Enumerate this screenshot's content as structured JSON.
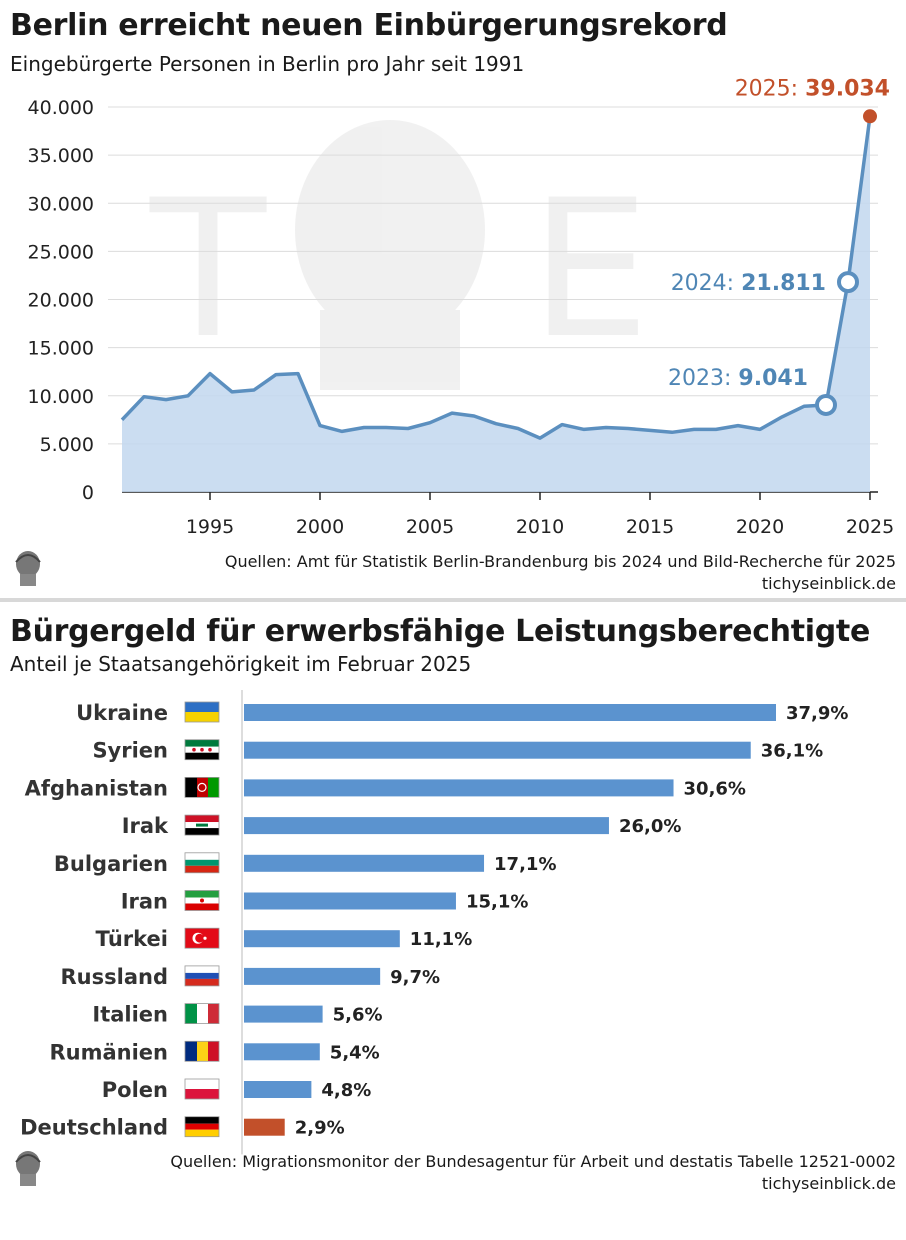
{
  "colors": {
    "line": "#5b8fbf",
    "area": "#c2d7ee",
    "bar": "#5b93cf",
    "highlight_orange": "#c2502a",
    "annotation_blue": "#4f86b5"
  },
  "line_chart": {
    "title": "Berlin erreicht neuen Einbürgerungsrekord",
    "subtitle": "Eingebürgerte Personen in Berlin pro Jahr seit 1991",
    "source": "Quellen: Amt für Statistik Berlin-Brandenburg bis 2024 und Bild-Recherche für 2025",
    "site": "tichyseinblick.de",
    "annotations": [
      {
        "label": "2023: ",
        "value": "9.041",
        "year": 2023,
        "y": 9041,
        "color_key": "annotation_blue"
      },
      {
        "label": "2024: ",
        "value": "21.811",
        "year": 2024,
        "y": 21811,
        "color_key": "annotation_blue"
      },
      {
        "label": "2025: ",
        "value": "39.034",
        "year": 2025,
        "y": 39034,
        "color_key": "highlight_orange"
      }
    ]
  },
  "bar_chart": {
    "title": "Bürgergeld für erwerbsfähige Leistungsberechtigte",
    "subtitle": "Anteil je Staatsangehörigkeit im Februar 2025",
    "source": "Quellen: Migrationsmonitor der Bundesagentur für Arbeit und destatis Tabelle 12521-0002",
    "site": "tichyseinblick.de"
  },
  "chart_data": [
    {
      "type": "area",
      "title": "Berlin erreicht neuen Einbürgerungsrekord",
      "subtitle": "Eingebürgerte Personen in Berlin pro Jahr seit 1991",
      "xlabel": "",
      "ylabel": "",
      "xlim": [
        1991,
        2025
      ],
      "ylim": [
        0,
        40000
      ],
      "x_ticks": [
        1995,
        2000,
        2005,
        2010,
        2015,
        2020,
        2025
      ],
      "x_tick_labels": [
        "1995",
        "2000",
        "2005",
        "2010",
        "2015",
        "2020",
        "2025"
      ],
      "y_ticks": [
        0,
        5000,
        10000,
        15000,
        20000,
        25000,
        30000,
        35000,
        40000
      ],
      "y_tick_labels": [
        "0",
        "5.000",
        "10.000",
        "15.000",
        "20.000",
        "25.000",
        "30.000",
        "35.000",
        "40.000"
      ],
      "grid": true,
      "x": [
        1991,
        1992,
        1993,
        1994,
        1995,
        1996,
        1997,
        1998,
        1999,
        2000,
        2001,
        2002,
        2003,
        2004,
        2005,
        2006,
        2007,
        2008,
        2009,
        2010,
        2011,
        2012,
        2013,
        2014,
        2015,
        2016,
        2017,
        2018,
        2019,
        2020,
        2021,
        2022,
        2023,
        2024,
        2025
      ],
      "y": [
        7500,
        9900,
        9600,
        10000,
        12300,
        10400,
        10600,
        12200,
        12300,
        6900,
        6300,
        6700,
        6700,
        6600,
        7200,
        8200,
        7900,
        7100,
        6600,
        5600,
        7000,
        6500,
        6700,
        6600,
        6400,
        6200,
        6500,
        6500,
        6900,
        6500,
        7800,
        8900,
        9041,
        21811,
        39034
      ]
    },
    {
      "type": "bar",
      "orientation": "horizontal",
      "title": "Bürgergeld für erwerbsfähige Leistungsberechtigte",
      "subtitle": "Anteil je Staatsangehörigkeit im Februar 2025",
      "categories": [
        "Ukraine",
        "Syrien",
        "Afghanistan",
        "Irak",
        "Bulgarien",
        "Iran",
        "Türkei",
        "Russland",
        "Italien",
        "Rumänien",
        "Polen",
        "Deutschland"
      ],
      "values": [
        37.9,
        36.1,
        30.6,
        26.0,
        17.1,
        15.1,
        11.1,
        9.7,
        5.6,
        5.4,
        4.8,
        2.9
      ],
      "value_labels": [
        "37,9%",
        "36,1%",
        "30,6%",
        "26,0%",
        "17,1%",
        "15,1%",
        "11,1%",
        "9,7%",
        "5,6%",
        "5,4%",
        "4,8%",
        "2,9%"
      ],
      "highlight": [
        "",
        "",
        "",
        "",
        "",
        "",
        "",
        "",
        "",
        "",
        "",
        "Deutschland"
      ],
      "flags": [
        "flag-ukraine-icon",
        "flag-syria-icon",
        "flag-afghanistan-icon",
        "flag-iraq-icon",
        "flag-bulgaria-icon",
        "flag-iran-icon",
        "flag-turkey-icon",
        "flag-russia-icon",
        "flag-italy-icon",
        "flag-romania-icon",
        "flag-poland-icon",
        "flag-germany-icon"
      ],
      "xlim": [
        0,
        40
      ],
      "grid": false
    }
  ]
}
